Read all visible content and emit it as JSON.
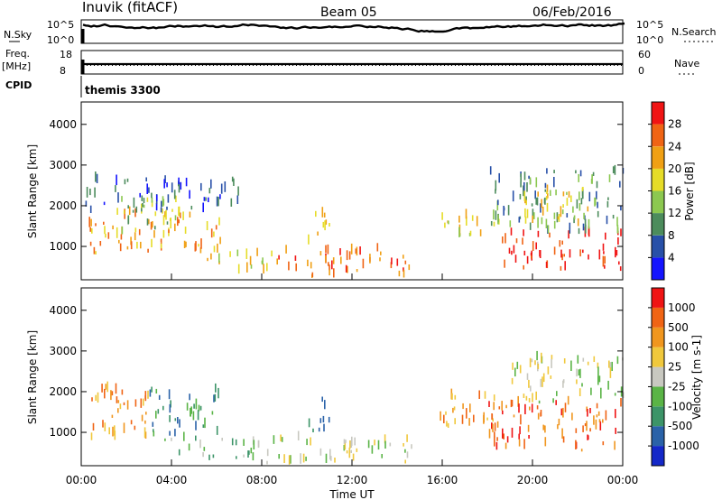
{
  "header": {
    "station": "Inuvik (fitACF)",
    "beam": "Beam 05",
    "date": "06/Feb/2016"
  },
  "noise_panel": {
    "left_label": "N.Sky",
    "right_label": "N.Search",
    "left_ticks": [
      "10^5",
      "10^0"
    ],
    "right_ticks": [
      "10^5",
      "10^0"
    ]
  },
  "freq_panel": {
    "left_label_top": "Freq.",
    "left_label_bottom": "[MHz]",
    "left_ticks": [
      "18",
      "8"
    ],
    "right_label": "Nave",
    "right_ticks": [
      "60",
      "0"
    ]
  },
  "cpid": {
    "label": "CPID",
    "value": "themis 3300"
  },
  "colors": {
    "frame": "#000000",
    "grey_scatter": "#c8c8c0"
  },
  "chart_data": [
    {
      "type": "heatmap",
      "name": "power",
      "ylabel": "Slant Range [km]",
      "ylim": [
        180,
        4550
      ],
      "yticks": [
        1000,
        2000,
        3000,
        4000
      ],
      "xlim_hours": [
        0,
        24
      ],
      "colorbar": {
        "label": "Power [dB]",
        "ticks": [
          "4",
          "8",
          "12",
          "16",
          "20",
          "24",
          "28"
        ],
        "colors": [
          "#1414ff",
          "#2850a8",
          "#4c8c5c",
          "#8cc850",
          "#e6dc28",
          "#f0a014",
          "#f06414",
          "#f01414"
        ]
      },
      "regions": [
        {
          "t": [
            0.2,
            6.2
          ],
          "r": [
            800,
            1800
          ],
          "level": 5
        },
        {
          "t": [
            1.5,
            4.5
          ],
          "r": [
            1300,
            2100
          ],
          "level": 3
        },
        {
          "t": [
            0.1,
            7.0
          ],
          "r": [
            1800,
            2600
          ],
          "level": 1
        },
        {
          "t": [
            5.5,
            8.5
          ],
          "r": [
            300,
            800
          ],
          "level": 4
        },
        {
          "t": [
            8.5,
            14.5
          ],
          "r": [
            200,
            900
          ],
          "level": 6
        },
        {
          "t": [
            10.0,
            11.0
          ],
          "r": [
            1000,
            1800
          ],
          "level": 5
        },
        {
          "t": [
            15.5,
            18.5
          ],
          "r": [
            1200,
            1700
          ],
          "level": 4
        },
        {
          "t": [
            18.5,
            24.0
          ],
          "r": [
            400,
            1300
          ],
          "level": 7
        },
        {
          "t": [
            18.0,
            24.0
          ],
          "r": [
            1300,
            2800
          ],
          "level": 2
        },
        {
          "t": [
            19.5,
            22.5
          ],
          "r": [
            1500,
            2400
          ],
          "level": 4
        }
      ]
    },
    {
      "type": "heatmap",
      "name": "velocity",
      "ylabel": "Slant Range [km]",
      "ylim": [
        180,
        4550
      ],
      "yticks": [
        1000,
        2000,
        3000,
        4000
      ],
      "colorbar": {
        "label": "Velocity [m s-1]",
        "ticks": [
          "1000",
          "500",
          "100",
          "25",
          "-25",
          "-100",
          "-500",
          "-1000"
        ],
        "colors": [
          "#1428c8",
          "#2a62a8",
          "#3c9468",
          "#5ab446",
          "#c8c8c0",
          "#f0c83c",
          "#f0961e",
          "#f06414",
          "#f01414"
        ]
      },
      "regions": [
        {
          "t": [
            0.2,
            3.0
          ],
          "r": [
            800,
            2100
          ],
          "level": 6
        },
        {
          "t": [
            3.0,
            6.2
          ],
          "r": [
            900,
            2000
          ],
          "level": 2
        },
        {
          "t": [
            3.5,
            8.0
          ],
          "r": [
            300,
            800
          ],
          "level": 3
        },
        {
          "t": [
            8.0,
            15.0
          ],
          "r": [
            200,
            800
          ],
          "level": 4
        },
        {
          "t": [
            10.0,
            11.0
          ],
          "r": [
            1000,
            1800
          ],
          "level": 2
        },
        {
          "t": [
            15.5,
            18.5
          ],
          "r": [
            1100,
            1900
          ],
          "level": 6
        },
        {
          "t": [
            18.0,
            24.0
          ],
          "r": [
            500,
            1700
          ],
          "level": 7
        },
        {
          "t": [
            19.0,
            24.0
          ],
          "r": [
            1700,
            2800
          ],
          "level": 4
        }
      ]
    }
  ],
  "xaxis": {
    "ticks": [
      "00:00",
      "04:00",
      "08:00",
      "12:00",
      "16:00",
      "20:00",
      "00:00"
    ],
    "label": "Time UT"
  }
}
